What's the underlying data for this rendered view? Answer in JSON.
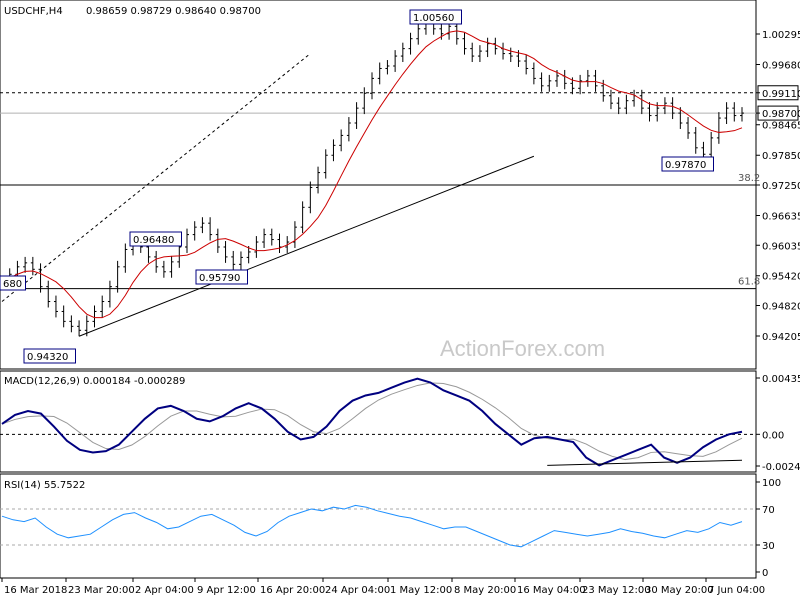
{
  "chart_data": {
    "type": "candlestick",
    "symbol_header": "USDCHF,H4",
    "ohlc_header": "0.98659 0.98729 0.98640 0.98700",
    "price_ticks": [
      "1.00295",
      "0.99680",
      "0.99110",
      "0.98700",
      "0.98465",
      "0.97850",
      "0.97250",
      "0.96635",
      "0.96035",
      "0.95420",
      "0.94820",
      "0.94205"
    ],
    "time_ticks": [
      "16 Mar 2018",
      "23 Mar 20:00",
      "2 Apr 04:00",
      "9 Apr 12:00",
      "16 Apr 20:00",
      "24 Apr 04:00",
      "1 May 12:00",
      "8 May 20:00",
      "16 May 04:00",
      "23 May 12:00",
      "30 May 20:00",
      "7 Jun 04:00"
    ],
    "current_price": "0.98700",
    "horizontal_levels": [
      {
        "value": 0.9911,
        "label": "0.99110",
        "style": "dashed"
      },
      {
        "value": 0.987,
        "label": "",
        "style": "solid-gray"
      },
      {
        "value": 0.9725,
        "label": "38.2",
        "style": "solid"
      },
      {
        "value": 0.9516,
        "label": "61.8",
        "style": "solid"
      }
    ],
    "price_annotations": [
      {
        "label": "1.00560",
        "value": 1.0056
      },
      {
        "label": "0.96480",
        "value": 0.9648
      },
      {
        "label": "0.95790",
        "value": 0.9579
      },
      {
        "label": "0.97870",
        "value": 0.9787
      },
      {
        "label": "0.94320",
        "value": 0.9432
      },
      {
        "label": "680",
        "value": 0.9568
      }
    ],
    "close_path": [
      0.953,
      0.9545,
      0.956,
      0.9568,
      0.9555,
      0.952,
      0.949,
      0.947,
      0.945,
      0.944,
      0.9432,
      0.945,
      0.947,
      0.949,
      0.952,
      0.956,
      0.9595,
      0.9615,
      0.96,
      0.958,
      0.956,
      0.955,
      0.957,
      0.96,
      0.9625,
      0.964,
      0.9648,
      0.9625,
      0.96,
      0.958,
      0.9565,
      0.9579,
      0.959,
      0.961,
      0.9625,
      0.9615,
      0.96,
      0.961,
      0.964,
      0.968,
      0.972,
      0.975,
      0.9785,
      0.9805,
      0.9825,
      0.985,
      0.988,
      0.991,
      0.994,
      0.996,
      0.9965,
      0.9985,
      1.0,
      1.002,
      1.004,
      1.0056,
      1.004,
      1.003,
      1.0045,
      1.002,
      1.0,
      0.9985,
      0.9995,
      1.001,
      1.0,
      0.999,
      0.9985,
      0.9975,
      0.996,
      0.994,
      0.9925,
      0.9935,
      0.9945,
      0.993,
      0.992,
      0.9935,
      0.9945,
      0.9925,
      0.9905,
      0.989,
      0.988,
      0.9895,
      0.9905,
      0.988,
      0.9865,
      0.988,
      0.989,
      0.987,
      0.985,
      0.983,
      0.98,
      0.9787,
      0.982,
      0.986,
      0.988,
      0.9865,
      0.987
    ],
    "macd_header": "MACD(12,26,9) 0.000184 -0.000289",
    "macd_ticks": [
      "0.004351",
      "0.00",
      "-0.002448"
    ],
    "macd_path": [
      0.0008,
      0.0015,
      0.0018,
      0.0016,
      0.0006,
      -0.0005,
      -0.0012,
      -0.0014,
      -0.0013,
      -0.0008,
      0.0002,
      0.0012,
      0.002,
      0.0022,
      0.0018,
      0.0012,
      0.001,
      0.0014,
      0.002,
      0.0024,
      0.002,
      0.0012,
      0.0002,
      -0.0004,
      -0.0002,
      0.0006,
      0.0018,
      0.0026,
      0.003,
      0.0032,
      0.0036,
      0.004,
      0.0043,
      0.004,
      0.0034,
      0.003,
      0.0026,
      0.0018,
      0.0008,
      0.0,
      -0.0008,
      -0.0003,
      -0.0002,
      -0.0004,
      -0.0006,
      -0.0018,
      -0.0024,
      -0.002,
      -0.0016,
      -0.0012,
      -0.0008,
      -0.0018,
      -0.0022,
      -0.0018,
      -0.001,
      -0.0004,
      0.0,
      0.0002
    ],
    "rsi_header": "RSI(14) 55.7522",
    "rsi_ticks": [
      "100",
      "70",
      "30",
      "0"
    ],
    "rsi_path": [
      62,
      58,
      56,
      60,
      50,
      42,
      38,
      40,
      42,
      50,
      58,
      64,
      66,
      60,
      55,
      48,
      50,
      56,
      62,
      64,
      58,
      52,
      44,
      40,
      45,
      55,
      62,
      66,
      70,
      68,
      72,
      70,
      74,
      72,
      68,
      65,
      62,
      60,
      56,
      52,
      48,
      50,
      50,
      45,
      40,
      35,
      30,
      28,
      34,
      40,
      46,
      44,
      42,
      40,
      42,
      44,
      48,
      45,
      43,
      40,
      38,
      42,
      46,
      44,
      48,
      55,
      52,
      56
    ]
  },
  "watermark": "ActionForex.com"
}
